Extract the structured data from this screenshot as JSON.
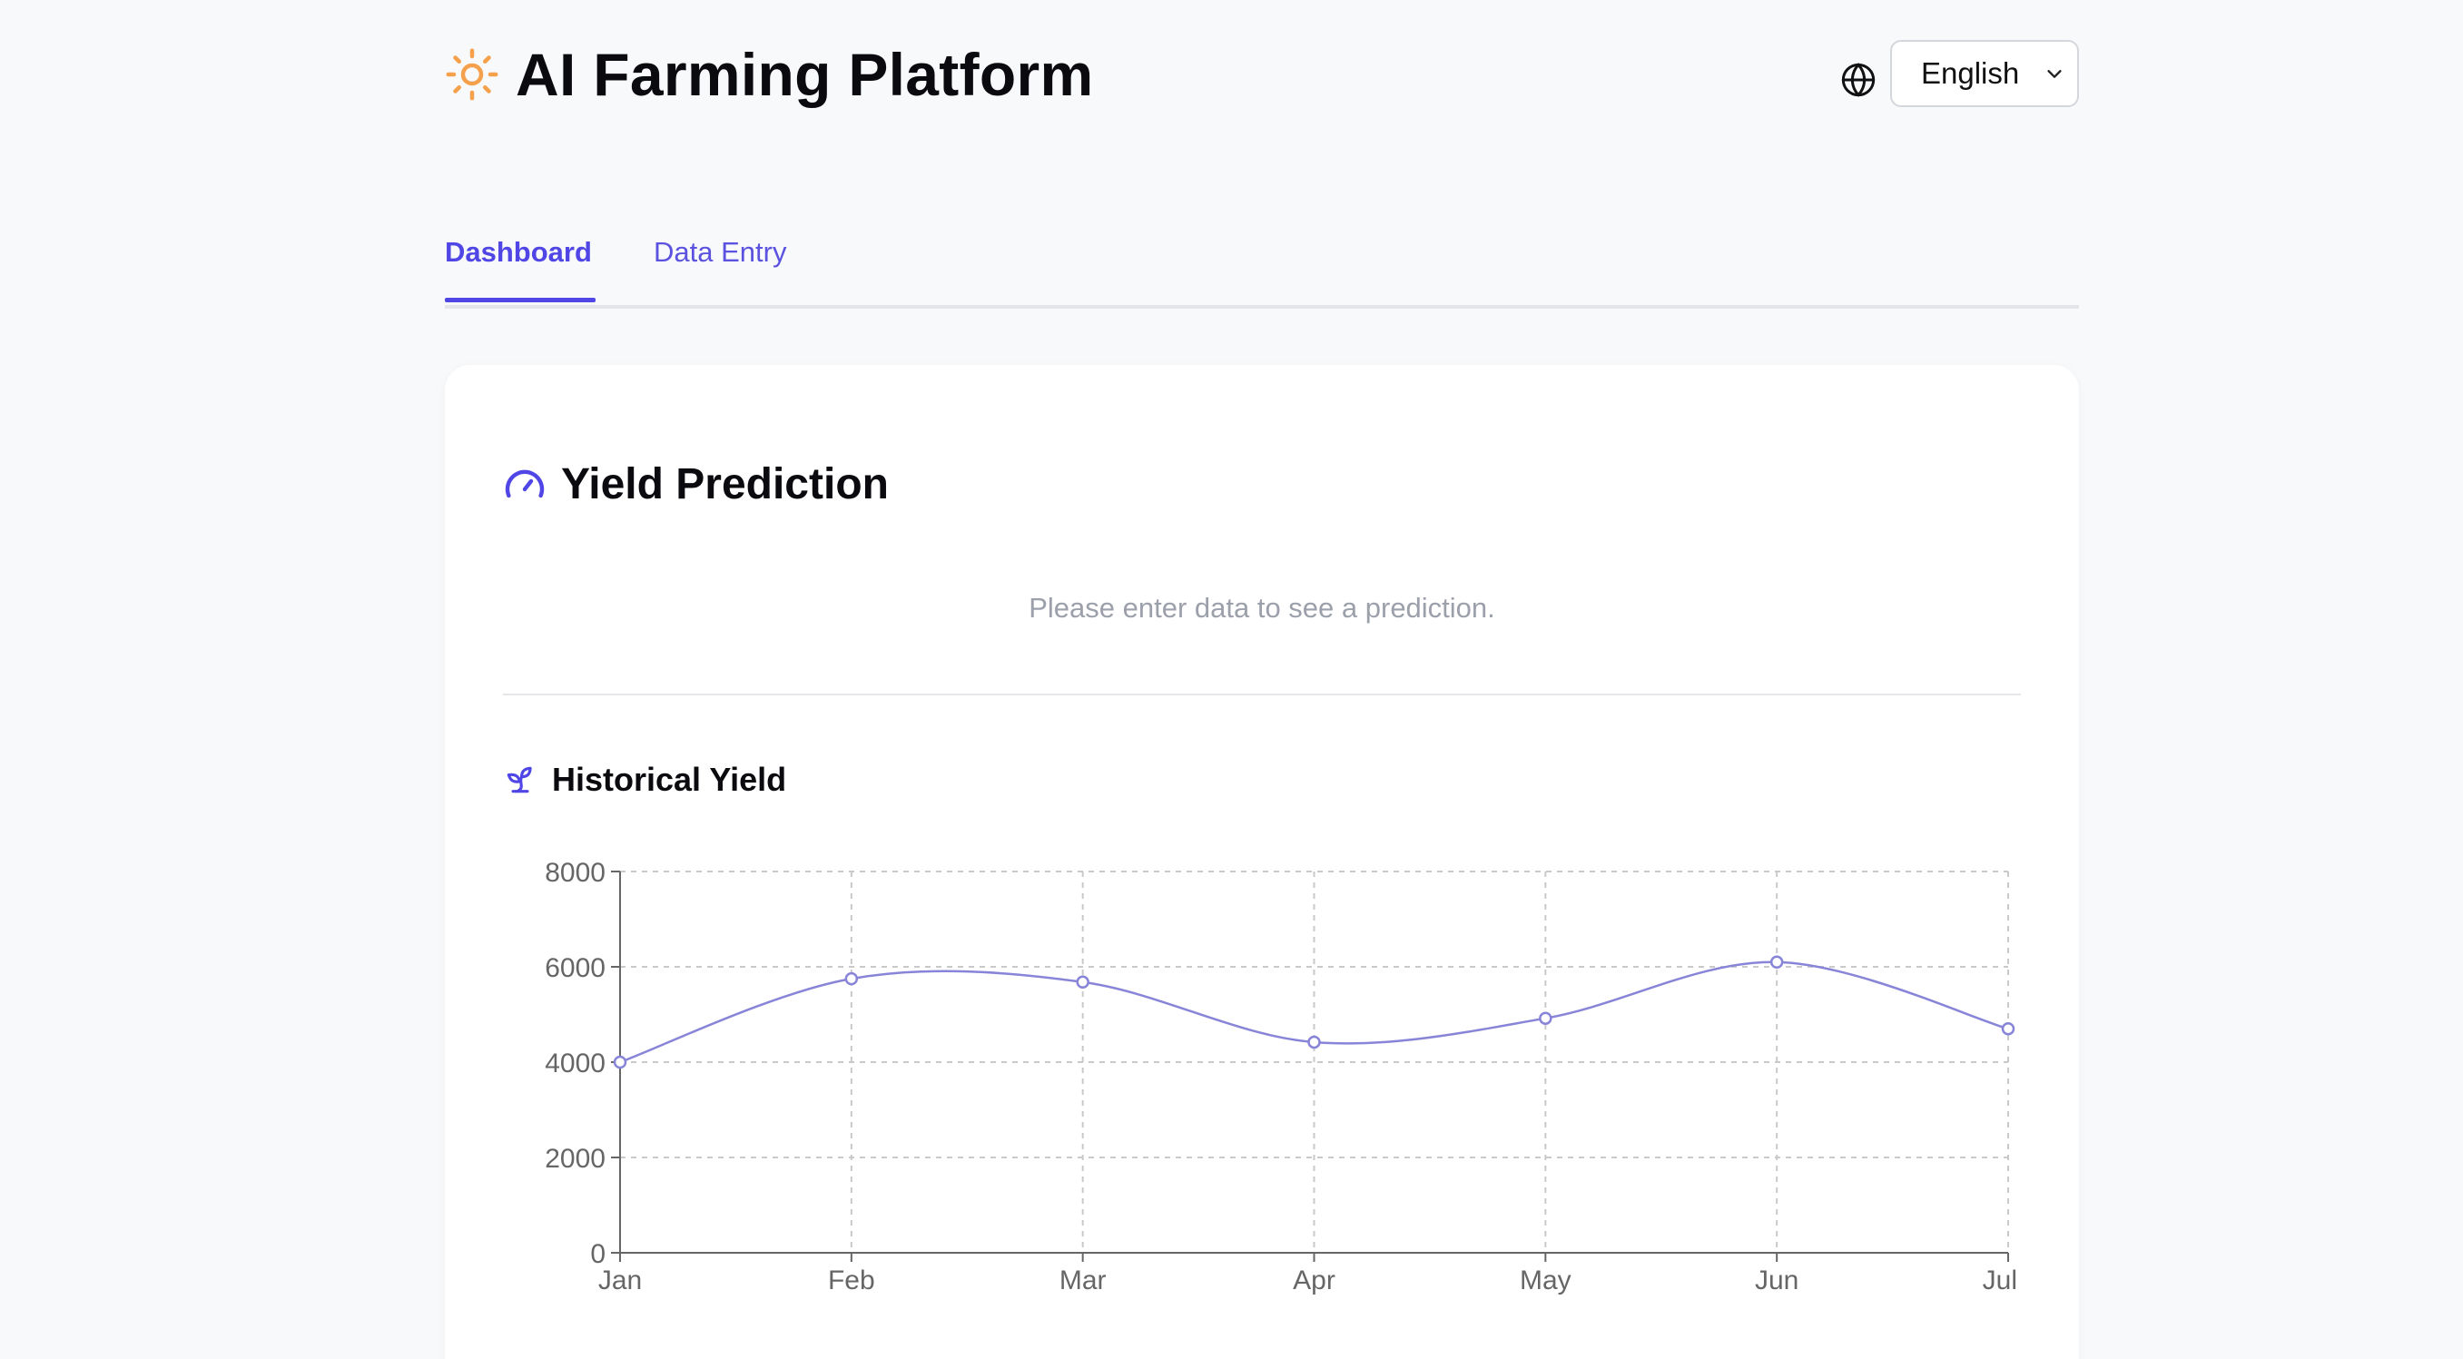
{
  "app": {
    "title": "AI Farming Platform",
    "logo_icon": "sun-icon",
    "accent_color": "#4f46e5",
    "logo_color": "#f5a04a"
  },
  "language": {
    "icon": "globe-icon",
    "selected": "English"
  },
  "tabs": [
    {
      "label": "Dashboard",
      "active": true
    },
    {
      "label": "Data Entry",
      "active": false
    }
  ],
  "yield_prediction": {
    "icon": "gauge-icon",
    "title": "Yield Prediction",
    "placeholder": "Please enter data to see a prediction."
  },
  "historical_yield": {
    "icon": "sprout-icon",
    "title": "Historical Yield"
  },
  "chart_data": {
    "type": "line",
    "categories": [
      "Jan",
      "Feb",
      "Mar",
      "Apr",
      "May",
      "Jun",
      "Jul"
    ],
    "series": [
      {
        "values": [
          4000,
          5750,
          5680,
          4420,
          4920,
          6100,
          4700
        ],
        "color": "#8884d8"
      }
    ],
    "ylim": [
      0,
      8000
    ],
    "yticks": [
      "0",
      "2000",
      "4000",
      "6000",
      "8000"
    ],
    "grid": true,
    "smooth": true
  }
}
